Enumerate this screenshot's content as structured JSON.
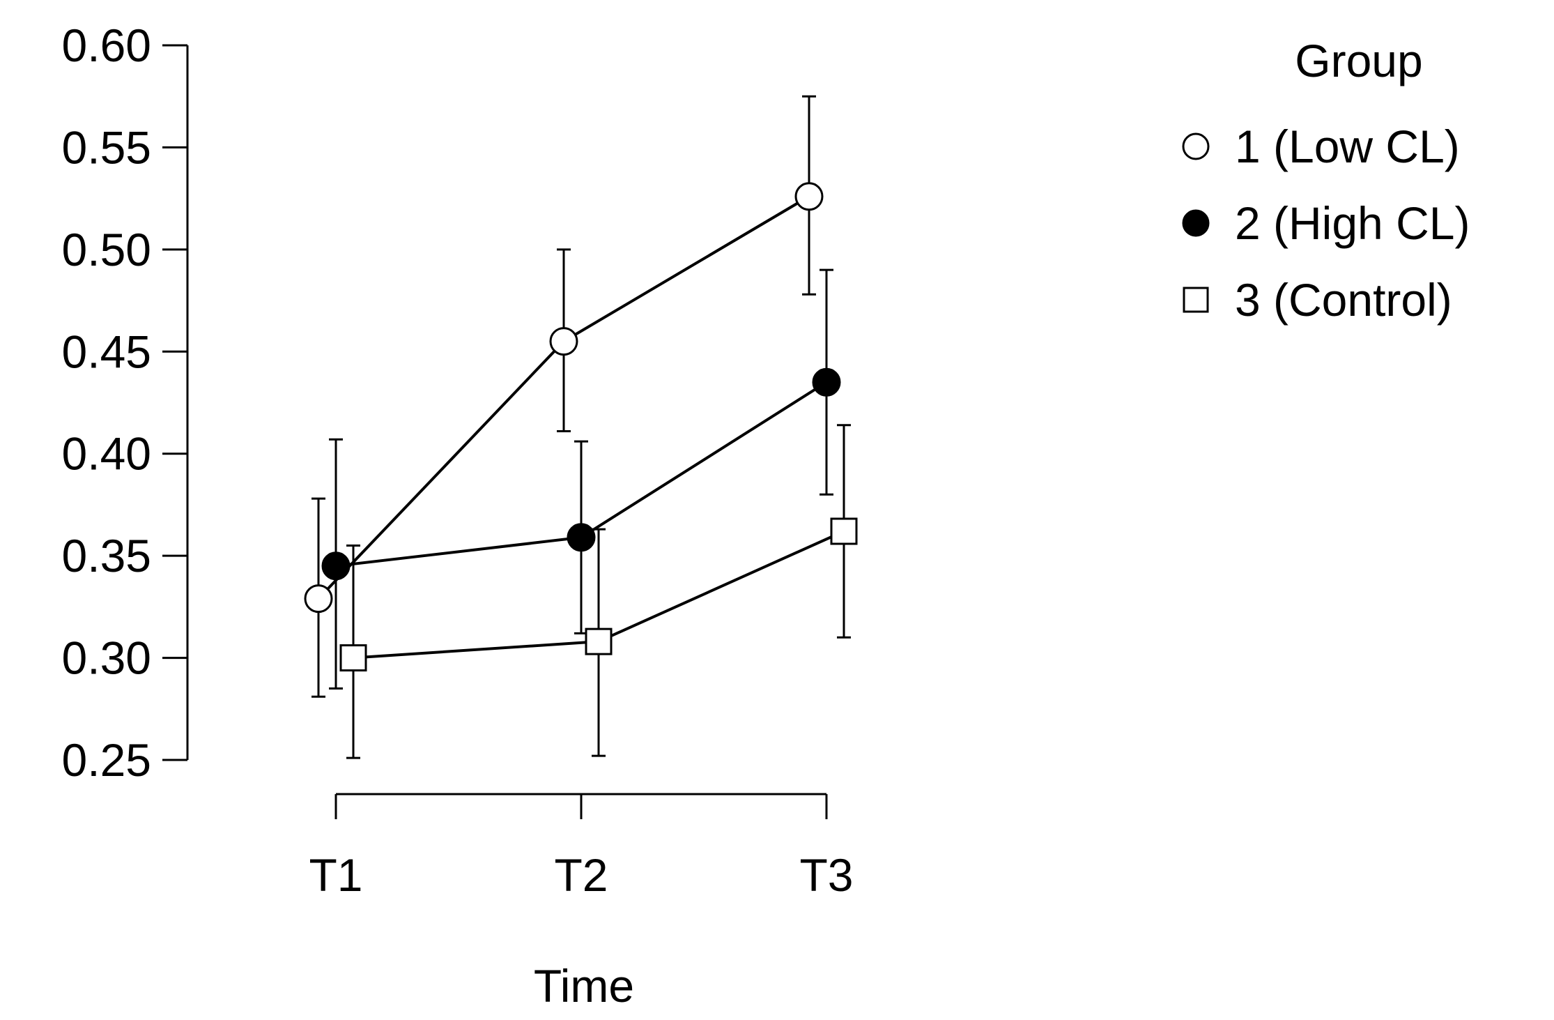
{
  "chart_data": {
    "type": "line",
    "xlabel": "Time",
    "ylabel": "",
    "categories": [
      "T1",
      "T2",
      "T3"
    ],
    "ylim": [
      0.25,
      0.6
    ],
    "yticks": [
      0.25,
      0.3,
      0.35,
      0.4,
      0.45,
      0.5,
      0.55,
      0.6
    ],
    "ytick_labels": [
      "0.25",
      "0.30",
      "0.35",
      "0.40",
      "0.45",
      "0.50",
      "0.55",
      "0.60"
    ],
    "grid": false,
    "legend": {
      "title": "Group",
      "placement": "top-right"
    },
    "series": [
      {
        "name": "1 (Low CL)",
        "marker": "circle-open",
        "values": [
          0.329,
          0.455,
          0.526
        ],
        "error_low": [
          0.281,
          0.411,
          0.478
        ],
        "error_high": [
          0.378,
          0.5,
          0.575
        ]
      },
      {
        "name": "2 (High CL)",
        "marker": "circle-filled",
        "values": [
          0.345,
          0.359,
          0.435
        ],
        "error_low": [
          0.285,
          0.312,
          0.38
        ],
        "error_high": [
          0.407,
          0.406,
          0.49
        ]
      },
      {
        "name": "3 (Control)",
        "marker": "square-open",
        "values": [
          0.3,
          0.308,
          0.362
        ],
        "error_low": [
          0.251,
          0.252,
          0.31
        ],
        "error_high": [
          0.355,
          0.363,
          0.414
        ]
      }
    ]
  }
}
